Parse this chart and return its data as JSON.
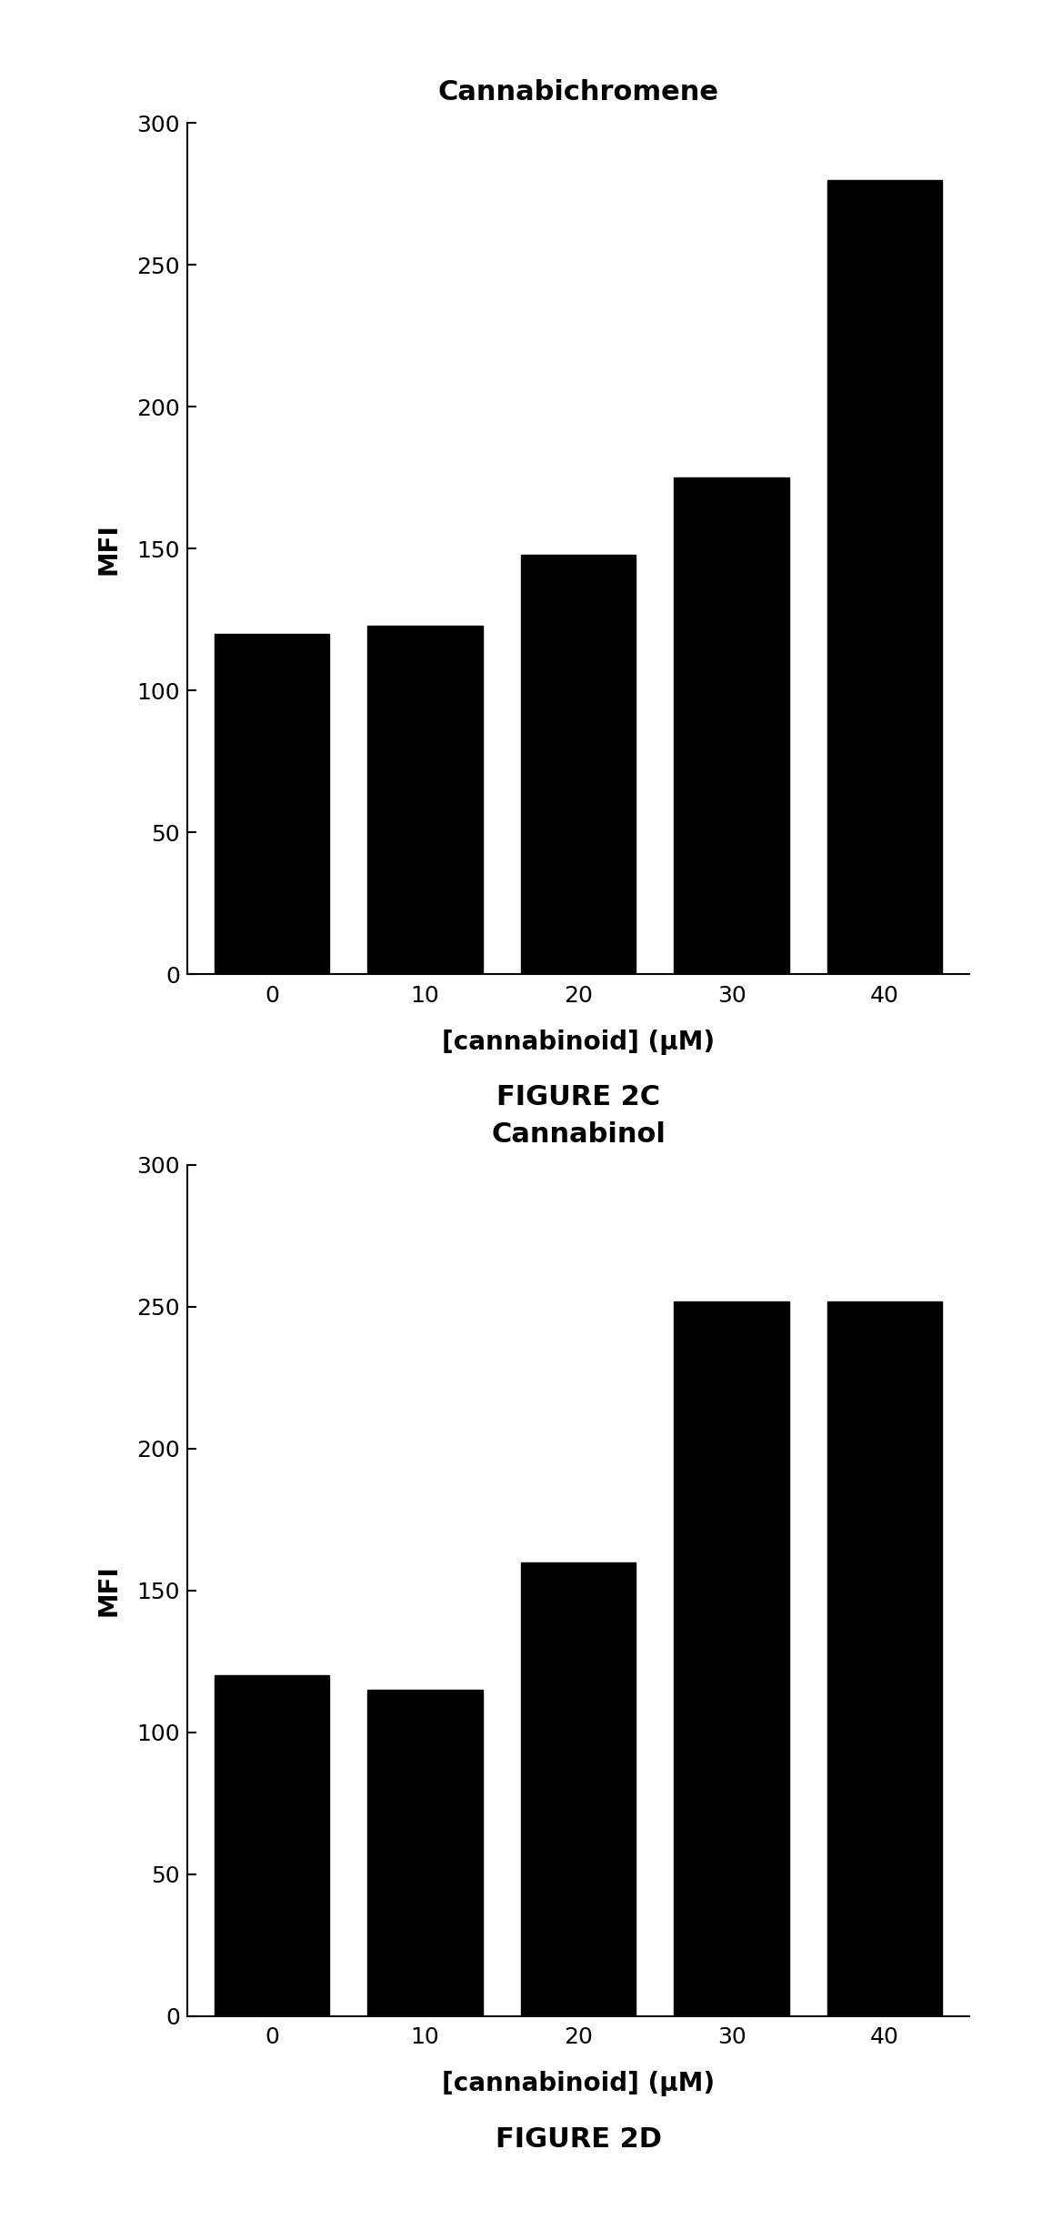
{
  "chart1": {
    "title": "Cannabichromene",
    "categories": [
      "0",
      "10",
      "20",
      "30",
      "40"
    ],
    "values": [
      120,
      123,
      148,
      175,
      280
    ],
    "ylabel": "MFI",
    "xlabel": "[cannabinoid] (μM)",
    "figure_label": "FIGURE 2C",
    "ylim": [
      0,
      300
    ],
    "yticks": [
      0,
      50,
      100,
      150,
      200,
      250,
      300
    ]
  },
  "chart2": {
    "title": "Cannabinol",
    "categories": [
      "0",
      "10",
      "20",
      "30",
      "40"
    ],
    "values": [
      120,
      115,
      160,
      252,
      252
    ],
    "ylabel": "MFI",
    "xlabel": "[cannabinoid] (μM)",
    "figure_label": "FIGURE 2D",
    "ylim": [
      0,
      300
    ],
    "yticks": [
      0,
      50,
      100,
      150,
      200,
      250,
      300
    ]
  },
  "bar_color": "#000000",
  "background_color": "#ffffff",
  "bar_width": 0.75,
  "title_fontsize": 22,
  "label_fontsize": 20,
  "tick_fontsize": 18,
  "figure_label_fontsize": 22
}
